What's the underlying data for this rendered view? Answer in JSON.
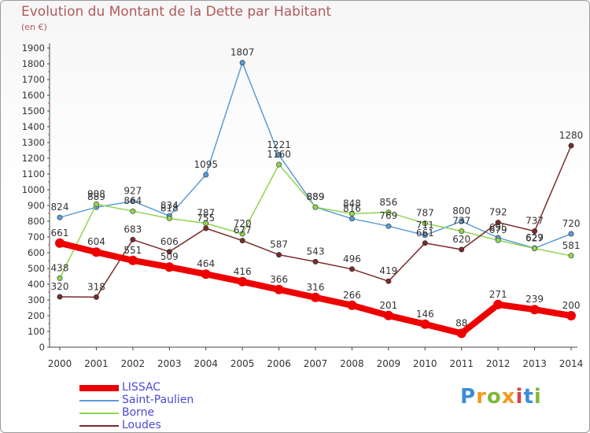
{
  "title": "Evolution du Montant de la Dette par Habitant",
  "unit": "(en €)",
  "logo": {
    "text": "Proxiti",
    "colors": [
      "#3b8ed6",
      "#f39a1e",
      "#7fb83a",
      "#f39a1e",
      "#d94141",
      "#3b8ed6",
      "#7fb83a"
    ]
  },
  "chart_data": {
    "type": "line",
    "x": [
      "2000",
      "2001",
      "2002",
      "2003",
      "2004",
      "2005",
      "2006",
      "2007",
      "2008",
      "2009",
      "2010",
      "2011",
      "2012",
      "2013",
      "2014"
    ],
    "ylim": [
      0,
      1900
    ],
    "yticks": [
      0,
      100,
      200,
      300,
      400,
      500,
      600,
      700,
      800,
      900,
      1000,
      1100,
      1200,
      1300,
      1400,
      1500,
      1600,
      1700,
      1800,
      1900
    ],
    "grid": false,
    "legend_position": "bottom-left",
    "series": [
      {
        "name": "LISSAC",
        "color": "#ee0000",
        "values": [
          661,
          604,
          551,
          509,
          464,
          416,
          366,
          316,
          266,
          201,
          146,
          88,
          271,
          239,
          200
        ]
      },
      {
        "name": "Saint-Paulien",
        "color": "#5b9bd5",
        "values": [
          824,
          889,
          927,
          834,
          1095,
          1807,
          1221,
          889,
          816,
          769,
          711,
          800,
          695,
          629,
          720
        ]
      },
      {
        "name": "Borne",
        "color": "#8fd451",
        "values": [
          438,
          908,
          864,
          818,
          787,
          720,
          1160,
          889,
          848,
          856,
          787,
          737,
          679,
          627,
          581
        ]
      },
      {
        "name": "Loudes",
        "color": "#7a2a2a",
        "values": [
          320,
          318,
          683,
          606,
          755,
          677,
          587,
          543,
          496,
          419,
          661,
          620,
          792,
          737,
          1280
        ]
      }
    ]
  }
}
